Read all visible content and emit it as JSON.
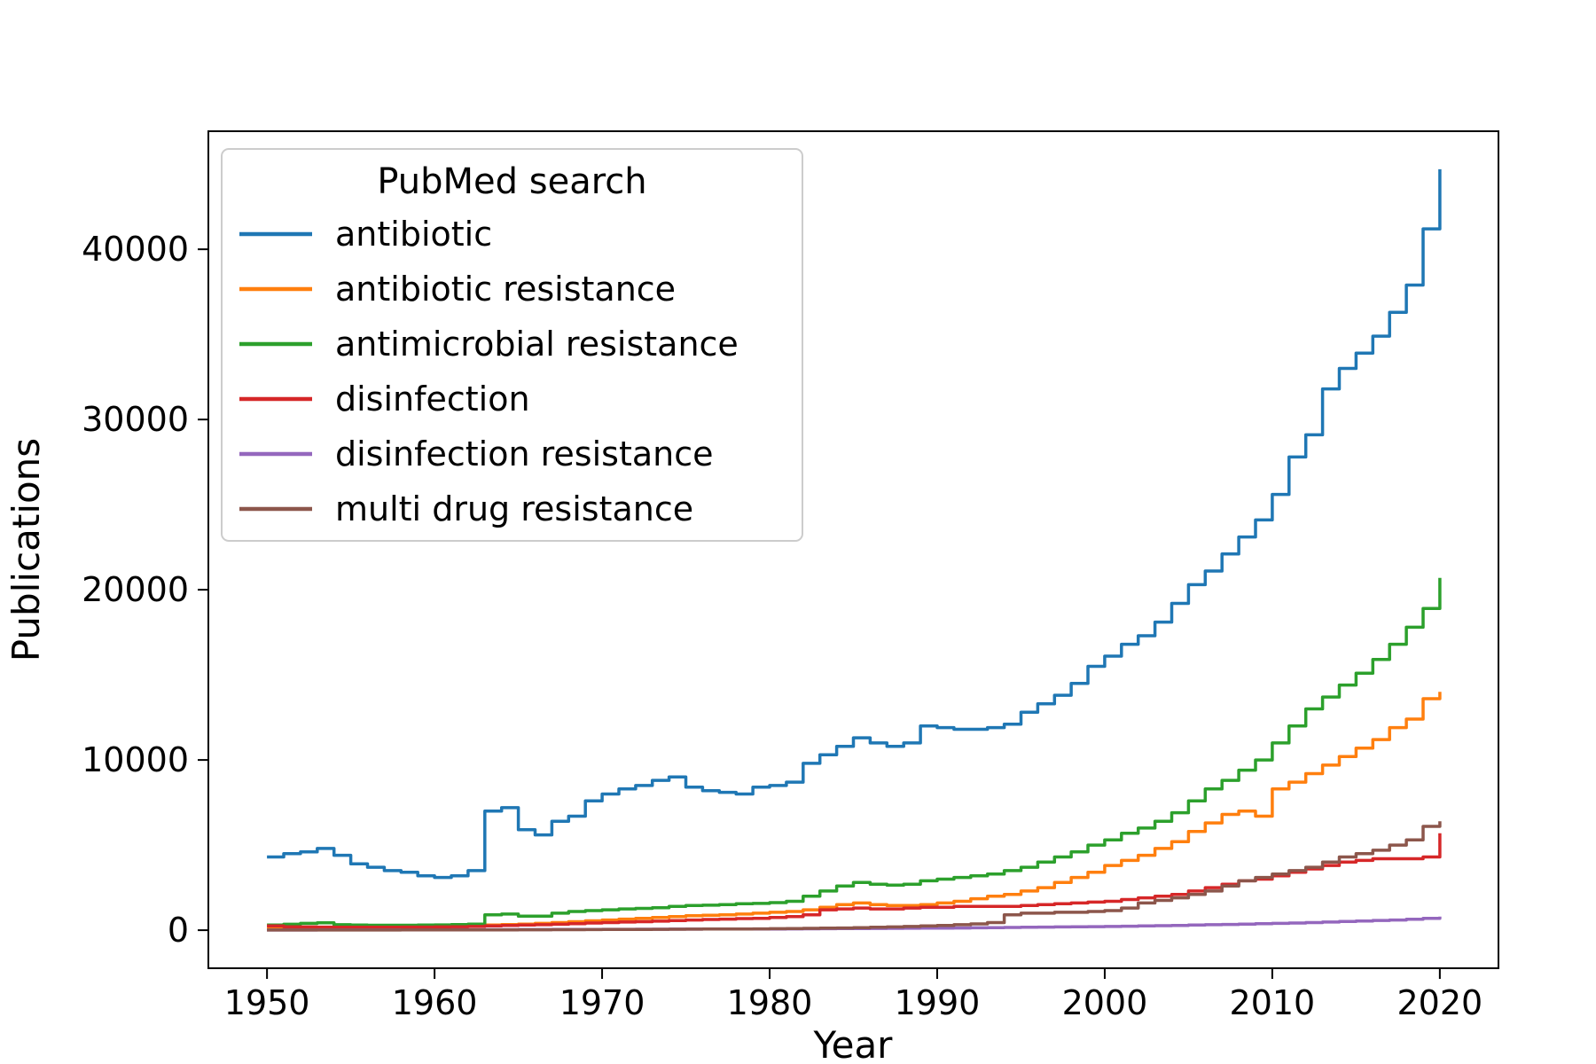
{
  "figure": {
    "background": "#ffffff",
    "frame_color": "#000000"
  },
  "chart_data": {
    "type": "line",
    "line_style": "step",
    "title": "",
    "xlabel": "Year",
    "ylabel": "Publications",
    "legend_title": "PubMed search",
    "legend_position": "upper left",
    "grid": false,
    "xlim": [
      1946.5,
      2023.5
    ],
    "ylim": [
      -2235,
      46935
    ],
    "xticks": [
      1950,
      1960,
      1970,
      1980,
      1990,
      2000,
      2010,
      2020
    ],
    "yticks": [
      0,
      10000,
      20000,
      30000,
      40000
    ],
    "x": [
      1950,
      1951,
      1952,
      1953,
      1954,
      1955,
      1956,
      1957,
      1958,
      1959,
      1960,
      1961,
      1962,
      1963,
      1964,
      1965,
      1966,
      1967,
      1968,
      1969,
      1970,
      1971,
      1972,
      1973,
      1974,
      1975,
      1976,
      1977,
      1978,
      1979,
      1980,
      1981,
      1982,
      1983,
      1984,
      1985,
      1986,
      1987,
      1988,
      1989,
      1990,
      1991,
      1992,
      1993,
      1994,
      1995,
      1996,
      1997,
      1998,
      1999,
      2000,
      2001,
      2002,
      2003,
      2004,
      2005,
      2006,
      2007,
      2008,
      2009,
      2010,
      2011,
      2012,
      2013,
      2014,
      2015,
      2016,
      2017,
      2018,
      2019,
      2020
    ],
    "series": [
      {
        "name": "antibiotic",
        "color": "#1f77b4",
        "values": [
          4300,
          4500,
          4600,
          4800,
          4400,
          3900,
          3700,
          3500,
          3400,
          3200,
          3100,
          3200,
          3500,
          7000,
          7200,
          5900,
          5600,
          6400,
          6700,
          7600,
          8000,
          8300,
          8500,
          8800,
          9000,
          8400,
          8200,
          8100,
          8000,
          8400,
          8500,
          8700,
          9800,
          10300,
          10800,
          11300,
          11000,
          10800,
          11000,
          12000,
          11900,
          11800,
          11800,
          11900,
          12100,
          12800,
          13300,
          13800,
          14500,
          15500,
          16100,
          16800,
          17300,
          18100,
          19200,
          20300,
          21100,
          22100,
          23100,
          24100,
          25600,
          27800,
          29100,
          31800,
          33000,
          33900,
          34900,
          36300,
          37900,
          41200,
          44700
        ]
      },
      {
        "name": "antibiotic resistance",
        "color": "#ff7f0e",
        "values": [
          100,
          110,
          120,
          140,
          150,
          160,
          170,
          180,
          190,
          200,
          210,
          230,
          260,
          300,
          330,
          360,
          400,
          450,
          500,
          550,
          600,
          650,
          700,
          750,
          800,
          850,
          880,
          900,
          950,
          1000,
          1050,
          1100,
          1200,
          1350,
          1500,
          1600,
          1500,
          1450,
          1450,
          1500,
          1600,
          1700,
          1850,
          2000,
          2100,
          2300,
          2500,
          2800,
          3100,
          3400,
          3800,
          4100,
          4400,
          4800,
          5200,
          5800,
          6300,
          6800,
          7000,
          6700,
          8300,
          8700,
          9200,
          9700,
          10200,
          10700,
          11200,
          11900,
          12400,
          13600,
          14000
        ]
      },
      {
        "name": "antimicrobial resistance",
        "color": "#2ca02c",
        "values": [
          300,
          350,
          400,
          430,
          320,
          300,
          290,
          290,
          290,
          300,
          310,
          330,
          360,
          900,
          950,
          820,
          820,
          1000,
          1100,
          1150,
          1200,
          1250,
          1280,
          1320,
          1400,
          1450,
          1470,
          1500,
          1550,
          1570,
          1620,
          1700,
          2000,
          2300,
          2600,
          2800,
          2700,
          2650,
          2700,
          2900,
          3000,
          3100,
          3200,
          3300,
          3500,
          3700,
          4000,
          4300,
          4600,
          5000,
          5300,
          5700,
          6000,
          6400,
          6900,
          7600,
          8300,
          8800,
          9400,
          10000,
          11000,
          12000,
          13000,
          13700,
          14400,
          15100,
          15900,
          16800,
          17800,
          18900,
          20700
        ]
      },
      {
        "name": "disinfection",
        "color": "#d62728",
        "values": [
          250,
          200,
          190,
          180,
          170,
          170,
          170,
          170,
          180,
          180,
          190,
          200,
          220,
          250,
          280,
          300,
          320,
          350,
          380,
          420,
          450,
          480,
          500,
          530,
          560,
          600,
          630,
          650,
          680,
          700,
          750,
          800,
          900,
          1200,
          1250,
          1300,
          1250,
          1250,
          1300,
          1350,
          1350,
          1400,
          1400,
          1400,
          1400,
          1450,
          1500,
          1550,
          1600,
          1650,
          1700,
          1800,
          1900,
          2000,
          2100,
          2300,
          2500,
          2700,
          2900,
          3000,
          3200,
          3400,
          3600,
          3800,
          4000,
          4100,
          4200,
          4200,
          4200,
          4300,
          5700
        ]
      },
      {
        "name": "disinfection resistance",
        "color": "#9467bd",
        "values": [
          10,
          10,
          10,
          15,
          15,
          15,
          15,
          20,
          20,
          20,
          20,
          25,
          25,
          30,
          30,
          35,
          35,
          40,
          40,
          45,
          50,
          50,
          55,
          55,
          60,
          60,
          65,
          65,
          70,
          70,
          75,
          80,
          85,
          90,
          95,
          100,
          105,
          110,
          115,
          120,
          125,
          130,
          140,
          150,
          160,
          170,
          180,
          190,
          200,
          210,
          220,
          235,
          250,
          265,
          280,
          300,
          320,
          340,
          360,
          380,
          400,
          420,
          450,
          480,
          510,
          540,
          570,
          600,
          640,
          700,
          800
        ]
      },
      {
        "name": "multi drug resistance",
        "color": "#8c564b",
        "values": [
          10,
          10,
          10,
          10,
          10,
          10,
          10,
          10,
          15,
          15,
          15,
          15,
          20,
          20,
          20,
          25,
          25,
          30,
          30,
          35,
          40,
          40,
          45,
          50,
          55,
          60,
          65,
          70,
          75,
          80,
          90,
          100,
          110,
          120,
          130,
          150,
          170,
          190,
          220,
          250,
          280,
          320,
          370,
          450,
          900,
          1000,
          1000,
          1050,
          1050,
          1100,
          1150,
          1300,
          1600,
          1750,
          1900,
          2100,
          2300,
          2600,
          2900,
          3100,
          3300,
          3500,
          3700,
          4000,
          4300,
          4500,
          4700,
          5000,
          5300,
          6100,
          6400
        ]
      }
    ]
  }
}
